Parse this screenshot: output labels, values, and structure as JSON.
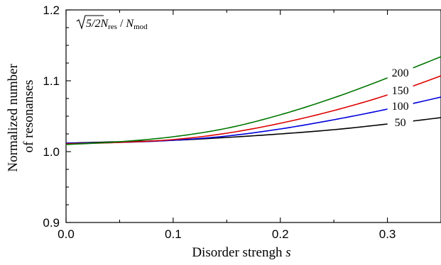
{
  "chart_data": {
    "type": "line",
    "xlabel_text": "Disorder strengh",
    "xlabel_var": "s",
    "ylabel_line1": "Normalized number",
    "ylabel_line2": "of resonanses",
    "annotation": {
      "sqrt_arg": "5/2",
      "n": "N",
      "n_sub": "res",
      "slash": "/",
      "d": "N",
      "d_sub": "mod"
    },
    "xlim": [
      0,
      0.35
    ],
    "ylim": [
      0.9,
      1.2
    ],
    "xticks": [
      0.0,
      0.1,
      0.2,
      0.3
    ],
    "xtick_labels": [
      "0.0",
      "0.1",
      "0.2",
      "0.3"
    ],
    "yticks": [
      0.9,
      1.0,
      1.1,
      1.2
    ],
    "ytick_labels": [
      "0.9",
      "1.0",
      "1.1",
      "1.2"
    ],
    "grid": false,
    "series": [
      {
        "name": "50",
        "color": "#000000",
        "x": [
          0,
          0.05,
          0.1,
          0.15,
          0.2,
          0.25,
          0.3,
          0.35
        ],
        "y": [
          1.012,
          1.014,
          1.016,
          1.02,
          1.025,
          1.031,
          1.039,
          1.048
        ]
      },
      {
        "name": "100",
        "color": "#0000dd",
        "x": [
          0,
          0.05,
          0.1,
          0.15,
          0.2,
          0.25,
          0.3,
          0.35
        ],
        "y": [
          1.012,
          1.013,
          1.016,
          1.022,
          1.032,
          1.045,
          1.06,
          1.077
        ]
      },
      {
        "name": "150",
        "color": "#dd0000",
        "x": [
          0,
          0.05,
          0.1,
          0.15,
          0.2,
          0.25,
          0.3,
          0.35
        ],
        "y": [
          1.011,
          1.013,
          1.017,
          1.026,
          1.04,
          1.058,
          1.08,
          1.107
        ]
      },
      {
        "name": "200",
        "color": "#007700",
        "x": [
          0,
          0.05,
          0.1,
          0.15,
          0.2,
          0.25,
          0.3,
          0.35
        ],
        "y": [
          1.01,
          1.014,
          1.021,
          1.033,
          1.052,
          1.076,
          1.104,
          1.134
        ]
      }
    ]
  }
}
